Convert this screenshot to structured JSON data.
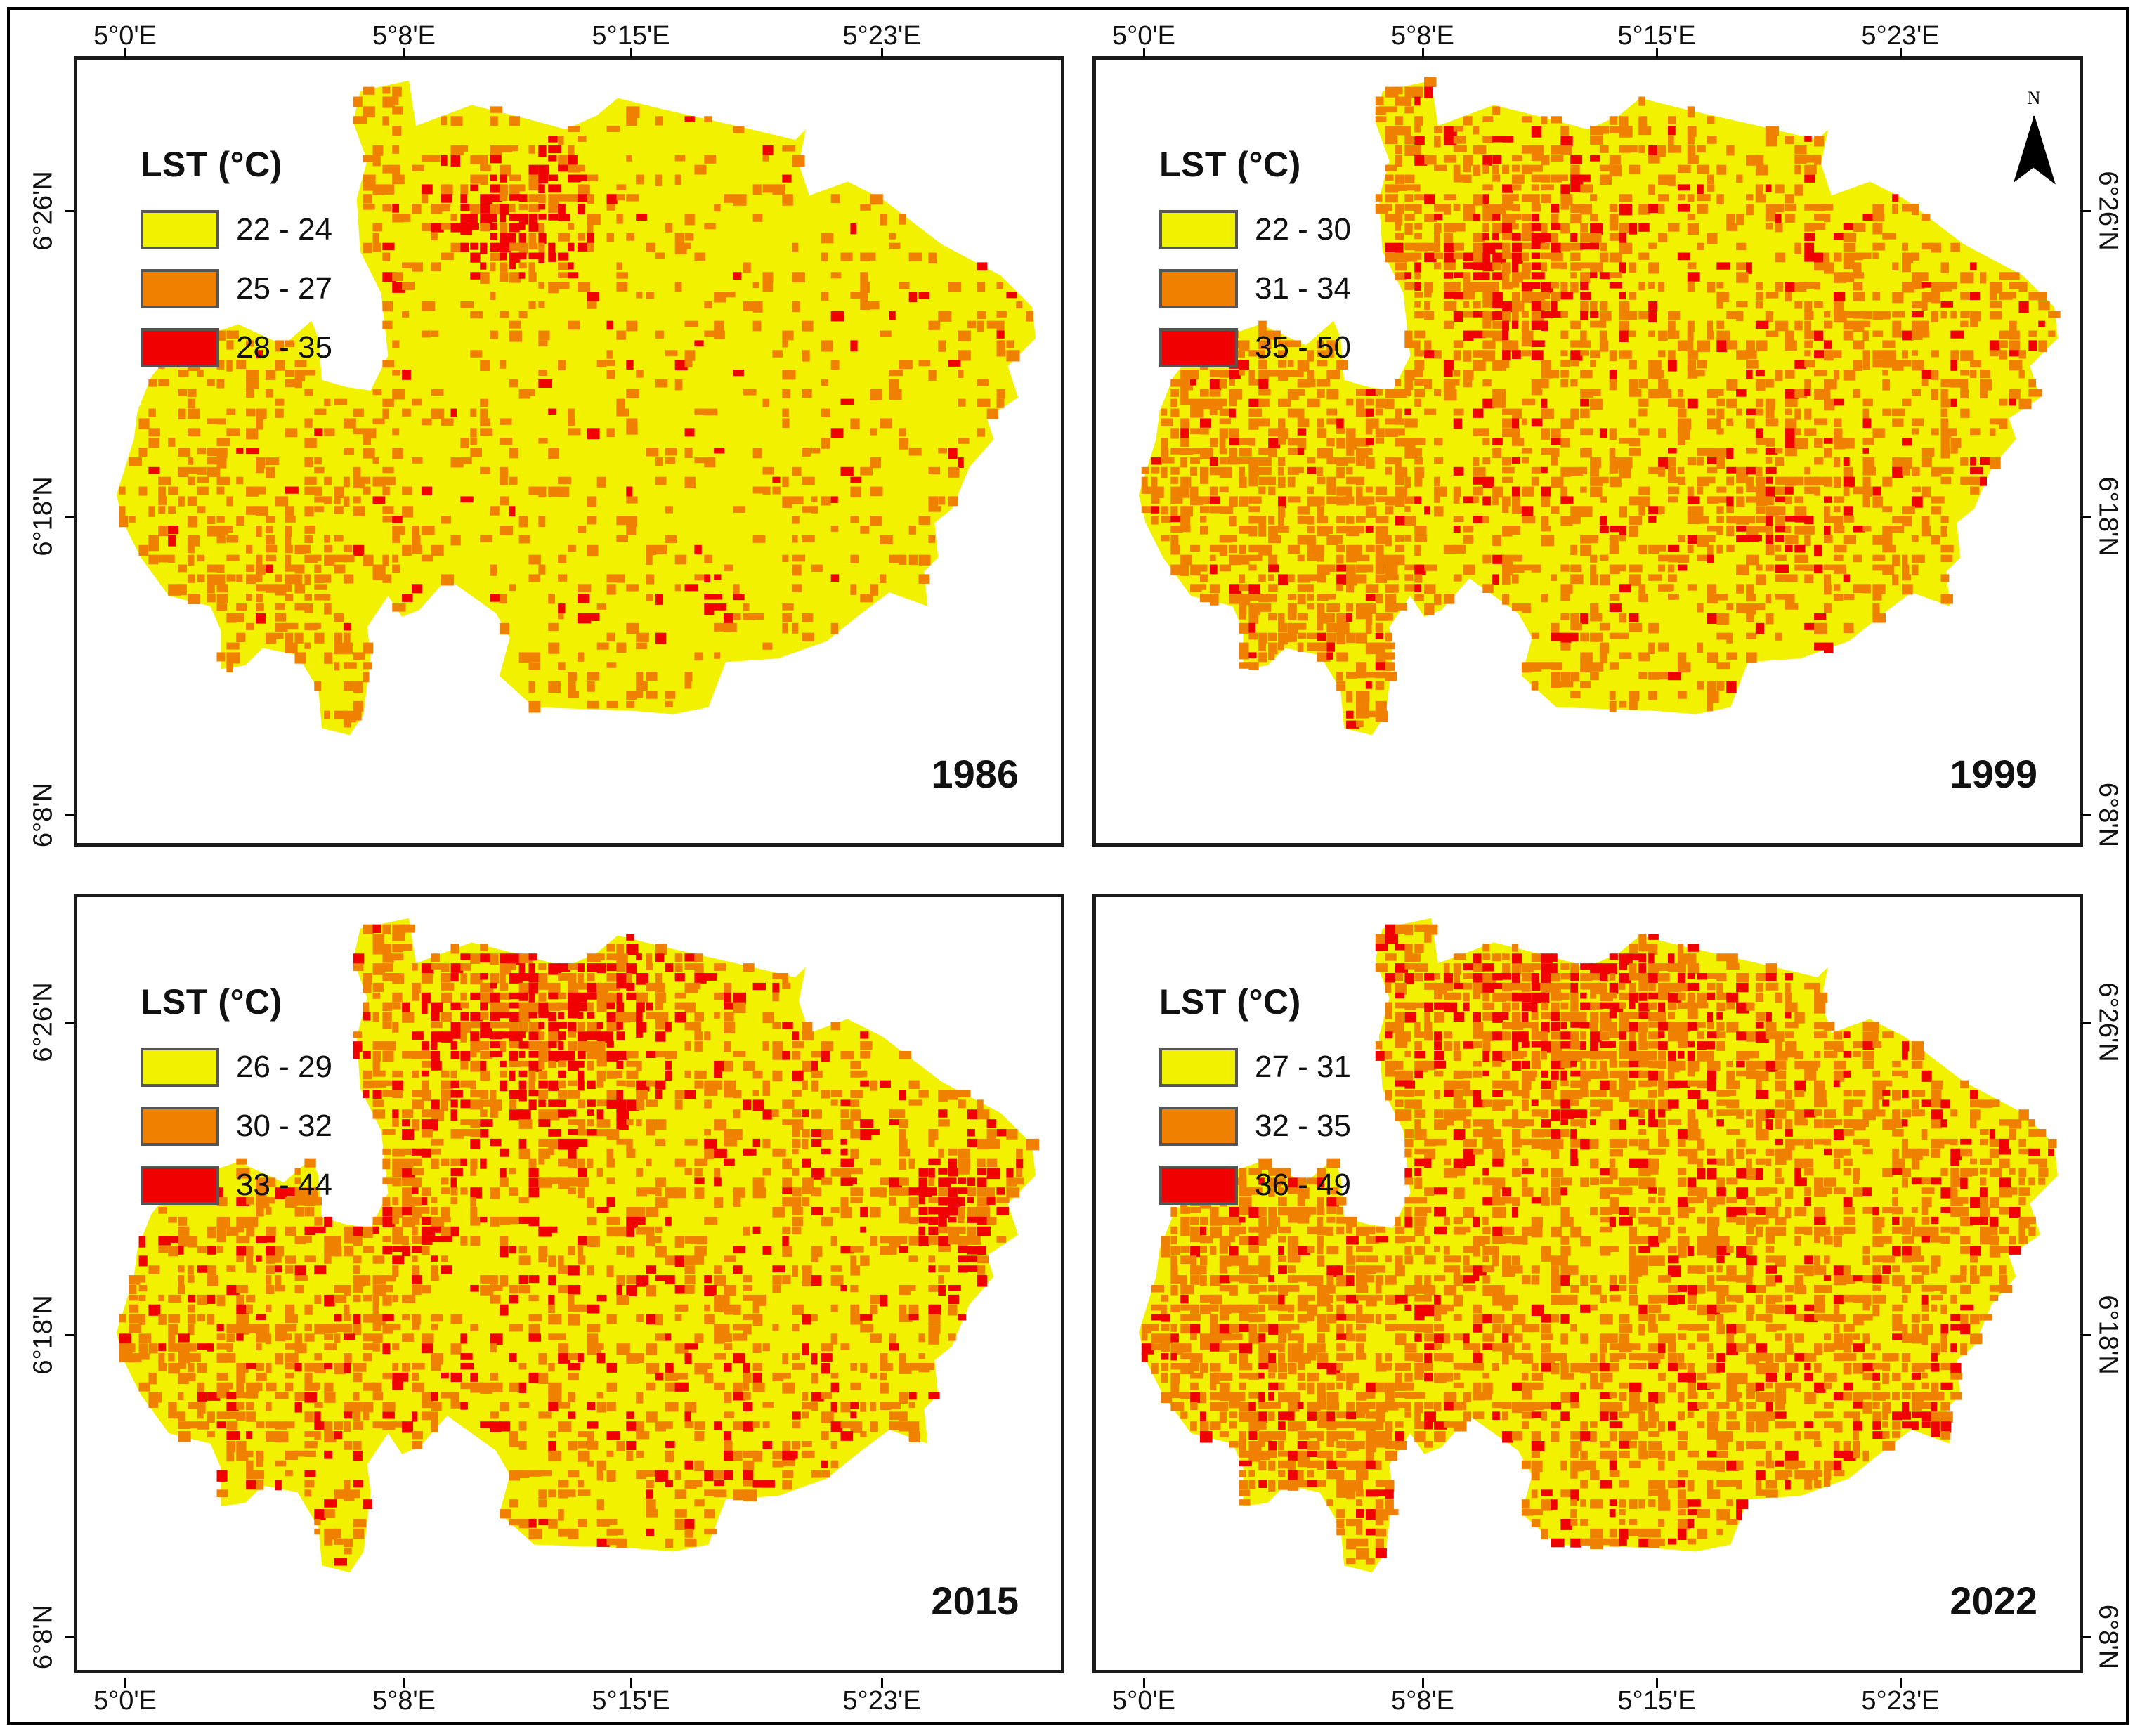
{
  "panels": [
    {
      "year": "1986",
      "legend_title": "LST (°C)",
      "legend": [
        {
          "label": "22 - 24",
          "color": "#F2F200"
        },
        {
          "label": "25 - 27",
          "color": "#F08000"
        },
        {
          "label": "28 - 35",
          "color": "#F00000"
        }
      ]
    },
    {
      "year": "1999",
      "legend_title": "LST (°C)",
      "legend": [
        {
          "label": "22 - 30",
          "color": "#F2F200"
        },
        {
          "label": "31 - 34",
          "color": "#F08000"
        },
        {
          "label": "35 - 50",
          "color": "#F00000"
        }
      ]
    },
    {
      "year": "2015",
      "legend_title": "LST (°C)",
      "legend": [
        {
          "label": "26 - 29",
          "color": "#F2F200"
        },
        {
          "label": "30 - 32",
          "color": "#F08000"
        },
        {
          "label": "33 - 44",
          "color": "#F00000"
        }
      ]
    },
    {
      "year": "2022",
      "legend_title": "LST (°C)",
      "legend": [
        {
          "label": "27 - 31",
          "color": "#F2F200"
        },
        {
          "label": "32 - 35",
          "color": "#F08000"
        },
        {
          "label": "36 - 49",
          "color": "#F00000"
        }
      ]
    }
  ],
  "longitude_ticks": [
    "5°0'E",
    "5°8'E",
    "5°15'E",
    "5°23'E"
  ],
  "latitude_ticks": [
    "6°26'N",
    "6°18'N",
    "6°8'N"
  ],
  "north_label": "N",
  "colors": {
    "low": "#F2F200",
    "mid": "#F08000",
    "high": "#F00000",
    "frame": "#1a1a1a"
  }
}
